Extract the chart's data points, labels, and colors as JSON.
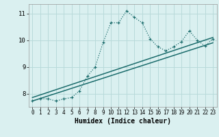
{
  "xlabel": "Humidex (Indice chaleur)",
  "bg_color": "#daf0f0",
  "grid_color": "#b8dada",
  "line_color": "#1a6b6b",
  "xlim": [
    -0.5,
    23.5
  ],
  "ylim": [
    7.5,
    11.35
  ],
  "yticks": [
    8,
    9,
    10,
    11
  ],
  "xticks": [
    0,
    1,
    2,
    3,
    4,
    5,
    6,
    7,
    8,
    9,
    10,
    11,
    12,
    13,
    14,
    15,
    16,
    17,
    18,
    19,
    20,
    21,
    22,
    23
  ],
  "curve_x": [
    0,
    1,
    2,
    3,
    4,
    5,
    6,
    7,
    8,
    9,
    10,
    11,
    12,
    13,
    14,
    15,
    16,
    17,
    18,
    19,
    20,
    21,
    22,
    23
  ],
  "curve_y": [
    7.72,
    7.8,
    7.8,
    7.72,
    7.8,
    7.85,
    8.1,
    8.65,
    9.0,
    9.9,
    10.65,
    10.65,
    11.1,
    10.85,
    10.65,
    10.05,
    9.75,
    9.6,
    9.75,
    9.95,
    10.35,
    10.0,
    9.78,
    10.05
  ],
  "line2_x": [
    0,
    23
  ],
  "line2_y": [
    7.72,
    9.9
  ],
  "line3_x": [
    0,
    23
  ],
  "line3_y": [
    7.85,
    10.1
  ]
}
